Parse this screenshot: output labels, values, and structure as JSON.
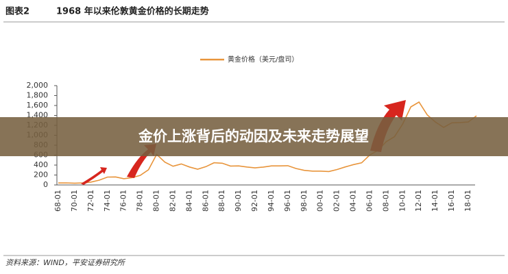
{
  "chart_data": {
    "type": "line",
    "figure_label": "图表2",
    "title": "1968 年以来伦敦黄金价格的长期走势",
    "categories": [
      "68-01",
      null,
      "70-01",
      null,
      "72-01",
      null,
      "74-01",
      null,
      "76-01",
      null,
      "78-01",
      null,
      "80-01",
      null,
      "82-01",
      null,
      "84-01",
      null,
      "86-01",
      null,
      "88-01",
      null,
      "90-01",
      null,
      "92-01",
      null,
      "94-01",
      null,
      "96-01",
      null,
      "98-01",
      null,
      "00-01",
      null,
      "02-01",
      null,
      "04-01",
      null,
      "06-01",
      null,
      "08-01",
      null,
      "10-01",
      null,
      "12-01",
      null,
      "14-01",
      null,
      "16-01",
      null,
      "18-01",
      null
    ],
    "series": [
      {
        "name": "黄金价格（美元/盘司）",
        "color": "#e8943a",
        "values": [
          40,
          41,
          36,
          41,
          58,
          97,
          159,
          161,
          125,
          148,
          193,
          306,
          615,
          460,
          376,
          424,
          361,
          317,
          368,
          447,
          437,
          381,
          383,
          362,
          344,
          360,
          384,
          384,
          388,
          331,
          294,
          279,
          279,
          271,
          310,
          363,
          409,
          445,
          604,
          696,
          872,
          972,
          1225,
          1572,
          1669,
          1411,
          1266,
          1160,
          1251,
          1257,
          1268,
          1392
        ]
      }
    ],
    "ylim": [
      0,
      2000
    ],
    "yticks": [
      0,
      200,
      400,
      600,
      800,
      {
        "value": 1000,
        "label": "1,000"
      },
      {
        "value": 1200,
        "label": "1,200"
      },
      {
        "value": 1400,
        "label": "1,400"
      },
      {
        "value": 1600,
        "label": "1,600"
      },
      {
        "value": 1800,
        "label": "1,800"
      },
      {
        "value": 2000,
        "label": "2,000"
      }
    ],
    "legend": "top",
    "source": "资料来源：WIND，平安证券研究所"
  },
  "overlay_title": "金价上涨背后的动因及未来走势展望"
}
